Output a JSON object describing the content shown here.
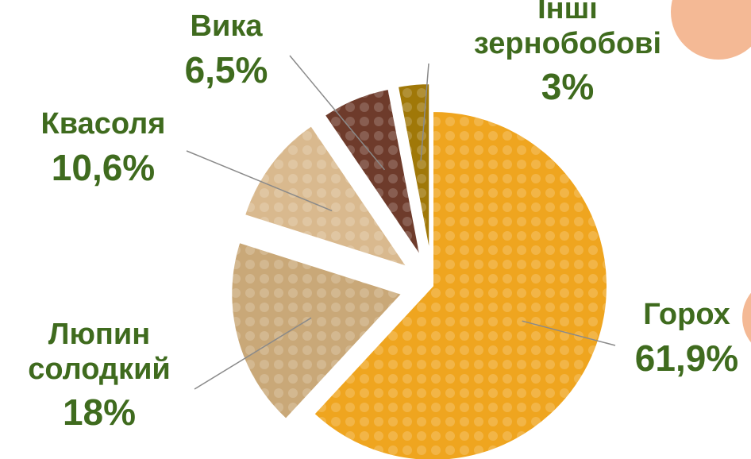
{
  "chart_data": {
    "type": "pie",
    "categories": [
      "Горох",
      "Люпин солодкий",
      "Квасоля",
      "Вика",
      "Інші зернобобові"
    ],
    "values": [
      61.9,
      18,
      10.6,
      6.5,
      3
    ],
    "value_labels": [
      "61,9%",
      "18%",
      "10,6%",
      "6,5%",
      "3%"
    ],
    "colors": [
      "#efa51f",
      "#c9a878",
      "#d9b98e",
      "#6e3b2b",
      "#a07808"
    ]
  }
}
